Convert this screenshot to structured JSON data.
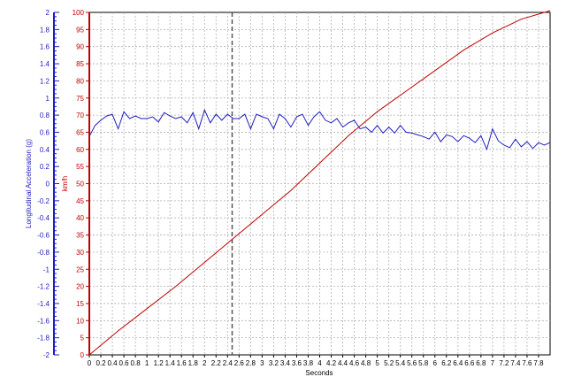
{
  "chart_data": {
    "type": "line",
    "xlabel": "Seconds",
    "x_ticks": [
      "0",
      "0.2",
      "0.4",
      "0.6",
      "0.8",
      "1",
      "1.2",
      "1.4",
      "1.6",
      "1.8",
      "2",
      "2.2",
      "2.4",
      "2.6",
      "2.8",
      "3",
      "3.2",
      "3.4",
      "3.6",
      "3.8",
      "4",
      "4.2",
      "4.4",
      "4.6",
      "4.8",
      "5",
      "5.2",
      "5.4",
      "5.6",
      "5.8",
      "6",
      "6.2",
      "6.4",
      "6.6",
      "6.8",
      "7",
      "7.2",
      "7.4",
      "7.6",
      "7.8"
    ],
    "xlim": [
      0,
      8.0
    ],
    "left_axis": {
      "label": "Longitudinal Acceleration (g)",
      "color": "#1f1fbf",
      "ylim": [
        -2,
        2
      ],
      "ticks": [
        "2",
        "1.8",
        "1.6",
        "1.4",
        "1.2",
        "1",
        "0.8",
        "0.6",
        "0.4",
        "0.2",
        "0",
        "-0.2",
        "-0.4",
        "-0.6",
        "-0.8",
        "-1",
        "-1.2",
        "-1.4",
        "-1.6",
        "-1.8",
        "-2"
      ]
    },
    "right_axis": {
      "label": "km/h",
      "color": "#c00000",
      "ylim": [
        0,
        100
      ],
      "ticks": [
        "100",
        "95",
        "90",
        "85",
        "80",
        "75",
        "70",
        "65",
        "60",
        "55",
        "50",
        "45",
        "40",
        "35",
        "30",
        "25",
        "20",
        "15",
        "10",
        "5",
        "0"
      ]
    },
    "marker_x": 2.48,
    "grid": true,
    "series": [
      {
        "axis": "right",
        "color": "#c00000",
        "points": [
          [
            0,
            0
          ],
          [
            0.5,
            7
          ],
          [
            1,
            13.5
          ],
          [
            1.5,
            20
          ],
          [
            2,
            27
          ],
          [
            2.5,
            34
          ],
          [
            3,
            41
          ],
          [
            3.5,
            48
          ],
          [
            4,
            56
          ],
          [
            4.5,
            64
          ],
          [
            5,
            71
          ],
          [
            5.5,
            77
          ],
          [
            6,
            83
          ],
          [
            6.5,
            89
          ],
          [
            7,
            94
          ],
          [
            7.5,
            98
          ],
          [
            8.0,
            100.5
          ]
        ]
      },
      {
        "axis": "left",
        "color": "#1f1fbf",
        "points": [
          [
            0,
            0.55
          ],
          [
            0.1,
            0.68
          ],
          [
            0.2,
            0.74
          ],
          [
            0.3,
            0.79
          ],
          [
            0.4,
            0.81
          ],
          [
            0.5,
            0.64
          ],
          [
            0.6,
            0.84
          ],
          [
            0.7,
            0.76
          ],
          [
            0.8,
            0.79
          ],
          [
            0.9,
            0.76
          ],
          [
            1.0,
            0.76
          ],
          [
            1.1,
            0.78
          ],
          [
            1.2,
            0.72
          ],
          [
            1.3,
            0.83
          ],
          [
            1.4,
            0.79
          ],
          [
            1.5,
            0.76
          ],
          [
            1.6,
            0.78
          ],
          [
            1.7,
            0.71
          ],
          [
            1.8,
            0.83
          ],
          [
            1.9,
            0.64
          ],
          [
            2.0,
            0.86
          ],
          [
            2.1,
            0.71
          ],
          [
            2.2,
            0.81
          ],
          [
            2.3,
            0.74
          ],
          [
            2.4,
            0.81
          ],
          [
            2.5,
            0.76
          ],
          [
            2.6,
            0.76
          ],
          [
            2.7,
            0.81
          ],
          [
            2.8,
            0.64
          ],
          [
            2.9,
            0.81
          ],
          [
            3.0,
            0.78
          ],
          [
            3.1,
            0.76
          ],
          [
            3.2,
            0.64
          ],
          [
            3.3,
            0.81
          ],
          [
            3.4,
            0.76
          ],
          [
            3.5,
            0.66
          ],
          [
            3.6,
            0.78
          ],
          [
            3.7,
            0.81
          ],
          [
            3.8,
            0.68
          ],
          [
            3.9,
            0.78
          ],
          [
            4.0,
            0.84
          ],
          [
            4.1,
            0.74
          ],
          [
            4.2,
            0.71
          ],
          [
            4.3,
            0.76
          ],
          [
            4.4,
            0.66
          ],
          [
            4.5,
            0.71
          ],
          [
            4.6,
            0.74
          ],
          [
            4.7,
            0.64
          ],
          [
            4.8,
            0.66
          ],
          [
            4.9,
            0.6
          ],
          [
            5.0,
            0.68
          ],
          [
            5.1,
            0.59
          ],
          [
            5.2,
            0.66
          ],
          [
            5.3,
            0.59
          ],
          [
            5.4,
            0.68
          ],
          [
            5.5,
            0.6
          ],
          [
            5.6,
            0.59
          ],
          [
            5.7,
            0.57
          ],
          [
            5.8,
            0.55
          ],
          [
            5.9,
            0.52
          ],
          [
            6.0,
            0.6
          ],
          [
            6.1,
            0.49
          ],
          [
            6.2,
            0.57
          ],
          [
            6.3,
            0.55
          ],
          [
            6.4,
            0.49
          ],
          [
            6.5,
            0.56
          ],
          [
            6.6,
            0.53
          ],
          [
            6.7,
            0.48
          ],
          [
            6.8,
            0.56
          ],
          [
            6.9,
            0.4
          ],
          [
            7.0,
            0.64
          ],
          [
            7.1,
            0.5
          ],
          [
            7.2,
            0.45
          ],
          [
            7.3,
            0.42
          ],
          [
            7.4,
            0.52
          ],
          [
            7.5,
            0.43
          ],
          [
            7.6,
            0.49
          ],
          [
            7.7,
            0.41
          ],
          [
            7.8,
            0.48
          ],
          [
            7.9,
            0.45
          ],
          [
            8.0,
            0.48
          ]
        ]
      }
    ]
  }
}
